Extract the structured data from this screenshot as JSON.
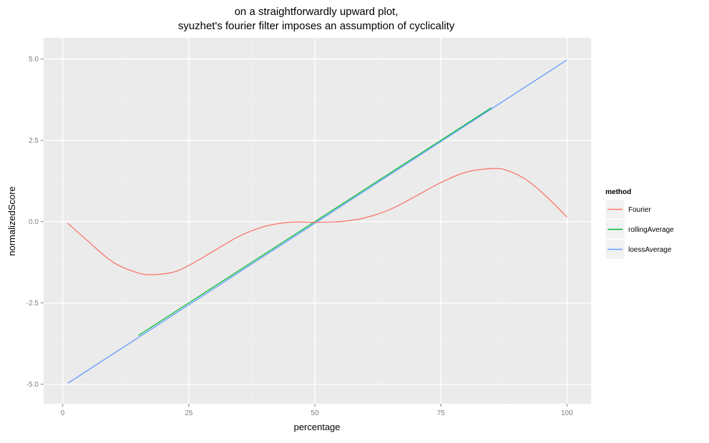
{
  "chart_data": {
    "type": "line",
    "title_lines": [
      "on a straightforwardly upward plot,",
      "syuzhet's fourier filter imposes an assumption of cyclicality"
    ],
    "xlabel": "percentage",
    "ylabel": "normalizedScore",
    "xlim": [
      -3.8,
      104.8
    ],
    "ylim": [
      -5.6,
      5.65
    ],
    "x_ticks": [
      0,
      25,
      50,
      75,
      100
    ],
    "x_tick_labels": [
      "0",
      "25",
      "50",
      "75",
      "100"
    ],
    "y_ticks": [
      5.0,
      2.5,
      0.0,
      -2.5,
      -5.0
    ],
    "y_tick_labels": [
      "5.0",
      "2.5",
      "0.0",
      "-2.5",
      "-5.0"
    ],
    "grid": true,
    "background": "#ebebeb",
    "legend": {
      "title": "method",
      "position": "right"
    },
    "series": [
      {
        "name": "Fourier",
        "color": "#f8766d",
        "x": [
          1,
          5,
          10,
          15,
          18,
          22,
          25,
          30,
          35,
          40,
          45,
          50,
          55,
          60,
          65,
          70,
          75,
          80,
          85,
          88,
          92,
          96,
          100
        ],
        "y": [
          -0.05,
          -0.6,
          -1.25,
          -1.58,
          -1.63,
          -1.55,
          -1.35,
          -0.9,
          -0.45,
          -0.15,
          -0.02,
          -0.02,
          0.0,
          0.12,
          0.38,
          0.78,
          1.2,
          1.52,
          1.63,
          1.58,
          1.28,
          0.76,
          0.14
        ]
      },
      {
        "name": "rollingAverage",
        "color": "#00ba38",
        "x": [
          15,
          85
        ],
        "y": [
          -3.5,
          3.5
        ]
      },
      {
        "name": "loessAverage",
        "color": "#619cff",
        "x": [
          1,
          100
        ],
        "y": [
          -4.97,
          4.97
        ]
      }
    ]
  }
}
